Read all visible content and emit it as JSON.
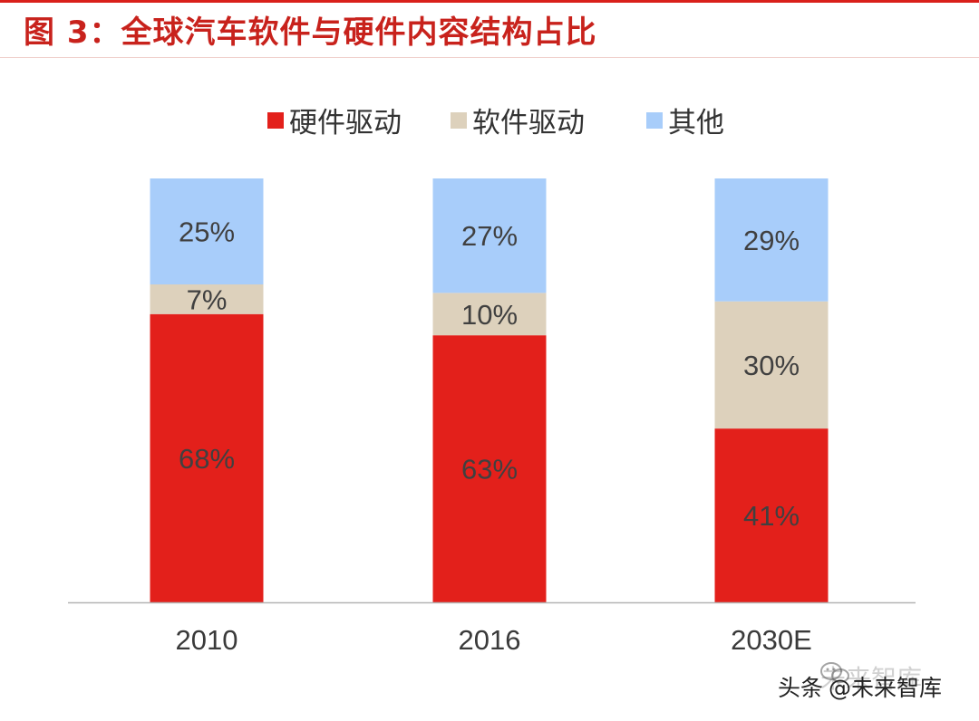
{
  "title": "图 3：全球汽车软件与硬件内容结构占比",
  "colors": {
    "title": "#c8221c",
    "hardware": "#e3201b",
    "software": "#ddd1bc",
    "other": "#a8cdfa",
    "axis": "#b4b4b4"
  },
  "legend": [
    {
      "label": "硬件驱动",
      "color": "#e3201b"
    },
    {
      "label": "软件驱动",
      "color": "#ddd1bc"
    },
    {
      "label": "其他",
      "color": "#a8cdfa"
    }
  ],
  "chart_data": {
    "type": "bar",
    "stacked": true,
    "percent": true,
    "title": "图 3：全球汽车软件与硬件内容结构占比",
    "categories": [
      "2010",
      "2016",
      "2030E"
    ],
    "series": [
      {
        "name": "硬件驱动",
        "values": [
          68,
          63,
          41
        ],
        "labels": [
          "68%",
          "63%",
          "41%"
        ]
      },
      {
        "name": "软件驱动",
        "values": [
          7,
          10,
          30
        ],
        "labels": [
          "7%",
          "10%",
          "30%"
        ]
      },
      {
        "name": "其他",
        "values": [
          25,
          27,
          29
        ],
        "labels": [
          "25%",
          "27%",
          "29%"
        ]
      }
    ],
    "ylim": [
      0,
      100
    ],
    "xlabel": "",
    "ylabel": "",
    "legend_position": "top-center",
    "grid": false
  },
  "watermark": {
    "source": "头条",
    "handle": "@未来智库",
    "brand": "未来智库"
  }
}
